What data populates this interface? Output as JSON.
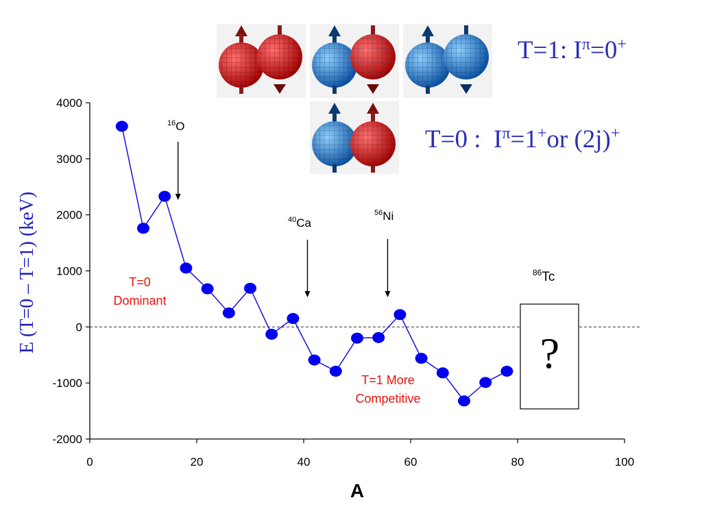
{
  "legend": {
    "t1": {
      "main": "T=1: I",
      "sup_pi": "π",
      "eq": "=0",
      "sup_parity": "+"
    },
    "t0": {
      "main": "T=0 :  I",
      "sup_pi": "π",
      "eq": "=1",
      "sup_parity": "+",
      "tail": "or (2j)",
      "sup_tail": "+"
    },
    "pair_colors": {
      "proton": "#e02020",
      "neutron": "#2a7fe0"
    }
  },
  "annotations": {
    "o16": {
      "mass": "16",
      "symbol": "O"
    },
    "ca40": {
      "mass": "40",
      "symbol": "Ca"
    },
    "ni56": {
      "mass": "56",
      "symbol": "Ni"
    },
    "tc86": {
      "mass": "86",
      "symbol": "Tc"
    },
    "t0_dominant": [
      "T=0",
      "Dominant"
    ],
    "t1_competitive": [
      "T=1 More",
      "Competitive"
    ],
    "question_mark": "?"
  },
  "chart_data": {
    "type": "line",
    "title": "",
    "xlabel": "A",
    "ylabel": "E (T=0 – T=1) (keV)",
    "xlim": [
      0,
      100
    ],
    "ylim": [
      -2000,
      4000
    ],
    "xticks": [
      0,
      20,
      40,
      60,
      80,
      100
    ],
    "yticks": [
      -2000,
      -1000,
      0,
      1000,
      2000,
      3000,
      4000
    ],
    "ytick_labels": [
      "-2000",
      "-1000",
      "0",
      "1000",
      "2000",
      "3000",
      "4000"
    ],
    "xtick_labels": [
      "0",
      "20",
      "40",
      "60",
      "80",
      "100"
    ],
    "grid": false,
    "reference_line_y": 0,
    "series": [
      {
        "color": "#0000ee",
        "x": [
          6,
          10,
          14,
          18,
          22,
          26,
          30,
          34,
          38,
          42,
          46,
          50,
          54,
          58,
          62,
          66,
          70,
          74,
          78
        ],
        "y": [
          3580,
          1760,
          2330,
          1050,
          680,
          250,
          690,
          -130,
          150,
          -590,
          -790,
          -200,
          -190,
          220,
          -560,
          -820,
          -1320,
          -990,
          -790
        ]
      }
    ],
    "arrows_at_x": [
      {
        "x": 16.5,
        "label": "16O"
      },
      {
        "x": 40.7,
        "label": "40Ca"
      },
      {
        "x": 55.7,
        "label": "56Ni"
      }
    ],
    "colors": {
      "text_red": "#e8140c",
      "axis": "#000000",
      "ylabel": "#1e1ebe"
    }
  }
}
